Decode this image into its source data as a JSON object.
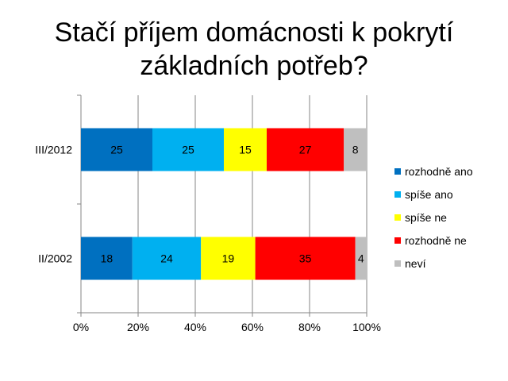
{
  "title_lines": [
    "Stačí příjem domácnosti k pokrytí",
    "základních potřeb?"
  ],
  "chart_data": {
    "type": "bar",
    "orientation": "horizontal",
    "stacked": "percent",
    "categories": [
      "III/2012",
      "II/2002"
    ],
    "series": [
      {
        "name": "rozhodně ano",
        "color": "#0070C0",
        "values": [
          25,
          18
        ]
      },
      {
        "name": "spíše ano",
        "color": "#00B0F0",
        "values": [
          25,
          24
        ]
      },
      {
        "name": "spíše ne",
        "color": "#FFFF00",
        "values": [
          15,
          19
        ]
      },
      {
        "name": "rozhodně ne",
        "color": "#FF0000",
        "values": [
          27,
          35
        ]
      },
      {
        "name": "neví",
        "color": "#BFBFBF",
        "values": [
          8,
          4
        ]
      }
    ],
    "xticks": [
      "0%",
      "20%",
      "40%",
      "60%",
      "80%",
      "100%"
    ],
    "xlim": [
      0,
      100
    ],
    "grid": true,
    "legend": "right"
  }
}
